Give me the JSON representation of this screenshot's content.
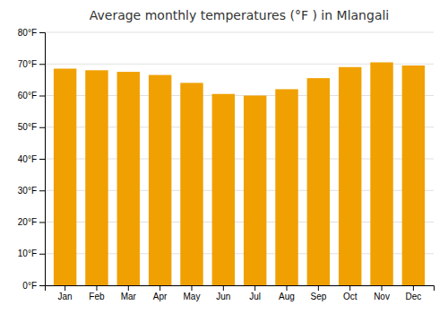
{
  "chart_data": {
    "type": "bar",
    "title": "Average monthly temperatures (°F ) in Mlangali",
    "categories": [
      "Jan",
      "Feb",
      "Mar",
      "Apr",
      "May",
      "Jun",
      "Jul",
      "Aug",
      "Sep",
      "Oct",
      "Nov",
      "Dec"
    ],
    "values": [
      68.5,
      68.0,
      67.5,
      66.5,
      64.0,
      60.5,
      60.0,
      62.0,
      65.5,
      69.0,
      70.5,
      69.5
    ],
    "color": "#F0A000",
    "ylim": [
      0,
      80
    ],
    "yticks": [
      {
        "value": 0,
        "label": "0°F"
      },
      {
        "value": 10,
        "label": "10°F"
      },
      {
        "value": 20,
        "label": "20°F"
      },
      {
        "value": 30,
        "label": "30°F"
      },
      {
        "value": 40,
        "label": "40°F"
      },
      {
        "value": 50,
        "label": "50°F"
      },
      {
        "value": 60,
        "label": "60°F"
      },
      {
        "value": 70,
        "label": "70°F"
      },
      {
        "value": 80,
        "label": "80°F"
      }
    ],
    "grid": true
  }
}
